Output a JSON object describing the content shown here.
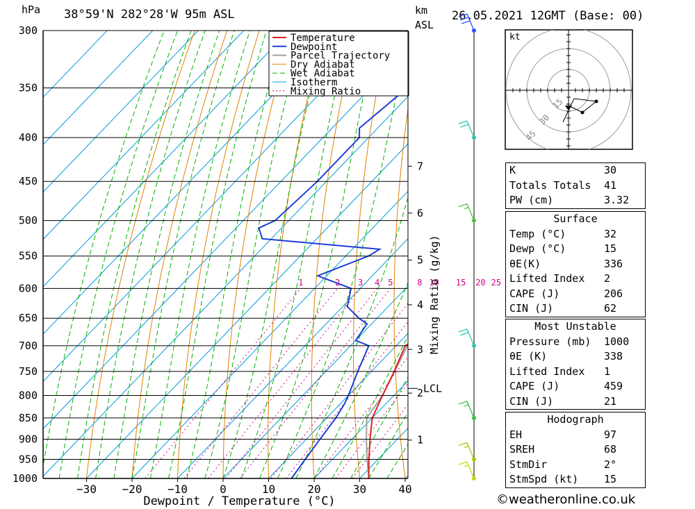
{
  "header": {
    "hpa_unit": "hPa",
    "location": "38°59'N  282°28'W  95m  ASL",
    "km_unit": "km",
    "asl_unit": "ASL",
    "datetime": "26.05.2021  12GMT  (Base: 00)"
  },
  "chart_data": {
    "type": "skew-t",
    "xlabel": "Dewpoint / Temperature (°C)",
    "x_ticks": [
      -30,
      -20,
      -10,
      0,
      10,
      20,
      30,
      40
    ],
    "ylabel_left": "hPa",
    "pressure_levels": [
      300,
      350,
      400,
      450,
      500,
      550,
      600,
      650,
      700,
      750,
      800,
      850,
      900,
      950,
      1000
    ],
    "height_axis": {
      "label": "km ASL",
      "ticks": [
        {
          "km": "1",
          "p": 902
        },
        {
          "km": "2",
          "p": 795
        },
        {
          "km": "3",
          "p": 707
        },
        {
          "km": "4",
          "p": 627
        },
        {
          "km": "5",
          "p": 556
        },
        {
          "km": "6",
          "p": 490
        },
        {
          "km": "7",
          "p": 432
        }
      ],
      "lcl_label": "LCL",
      "lcl_p": 785
    },
    "mixing_ratio_label": "Mixing Ratio (g/kg)",
    "mixing_ratio_values": [
      "1",
      "2",
      "3",
      "4",
      "5",
      "8",
      "10",
      "15",
      "20",
      "25"
    ],
    "legend": [
      "Temperature",
      "Dewpoint",
      "Parcel Trajectory",
      "Dry Adiabat",
      "Wet Adiabat",
      "Isotherm",
      "Mixing Ratio"
    ],
    "colors": {
      "temperature": "#e02020",
      "dewpoint": "#1e3fd8",
      "parcel": "#a0a0a0",
      "dry_adiabat": "#e08000",
      "wet_adiabat": "#00b000",
      "isotherm": "#009ad8",
      "mixing_ratio": "#d0008a"
    },
    "series": [
      {
        "name": "Temperature",
        "points": [
          [
            1000,
            32
          ],
          [
            950,
            28
          ],
          [
            900,
            24
          ],
          [
            850,
            20
          ],
          [
            800,
            17.5
          ],
          [
            750,
            15
          ],
          [
            700,
            12
          ],
          [
            685,
            13.5
          ],
          [
            650,
            10
          ],
          [
            600,
            5
          ],
          [
            575,
            2
          ],
          [
            550,
            1
          ],
          [
            525,
            -1
          ],
          [
            500,
            -5
          ],
          [
            450,
            -12.5
          ],
          [
            400,
            -21
          ],
          [
            350,
            -30
          ],
          [
            300,
            -41
          ]
        ]
      },
      {
        "name": "Dewpoint",
        "points": [
          [
            1000,
            15
          ],
          [
            950,
            14
          ],
          [
            900,
            13
          ],
          [
            850,
            12
          ],
          [
            820,
            11
          ],
          [
            800,
            10
          ],
          [
            750,
            7
          ],
          [
            700,
            4
          ],
          [
            690,
            0
          ],
          [
            660,
            -1
          ],
          [
            650,
            -4
          ],
          [
            630,
            -9
          ],
          [
            600,
            -12
          ],
          [
            580,
            -22
          ],
          [
            550,
            -15
          ],
          [
            540,
            -14
          ],
          [
            525,
            -42
          ],
          [
            510,
            -45
          ],
          [
            500,
            -43
          ],
          [
            450,
            -42
          ],
          [
            400,
            -42
          ],
          [
            390,
            -44
          ],
          [
            350,
            -42
          ],
          [
            300,
            -42
          ]
        ]
      },
      {
        "name": "Parcel Trajectory",
        "points": [
          [
            1000,
            32
          ],
          [
            950,
            27.6
          ],
          [
            900,
            23.2
          ],
          [
            850,
            18.8
          ],
          [
            800,
            17.5
          ],
          [
            700,
            12.5
          ],
          [
            600,
            6.5
          ],
          [
            500,
            -1
          ],
          [
            400,
            -14
          ],
          [
            300,
            -33
          ]
        ]
      }
    ],
    "wind_barbs": [
      {
        "p": 1000,
        "speed_kt": 15
      },
      {
        "p": 950,
        "speed_kt": 15
      },
      {
        "p": 850,
        "speed_kt": 15
      },
      {
        "p": 700,
        "speed_kt": 20
      },
      {
        "p": 500,
        "speed_kt": 15
      },
      {
        "p": 400,
        "speed_kt": 20
      },
      {
        "p": 300,
        "speed_kt": 30
      }
    ],
    "hodograph": {
      "unit": "kt",
      "ring_labels": [
        "15",
        "30",
        "45"
      ],
      "points": [
        [
          0,
          0
        ],
        [
          10,
          -5
        ],
        [
          20,
          3
        ],
        [
          4,
          5
        ],
        [
          -4,
          -12
        ]
      ]
    }
  },
  "indices": {
    "general": [
      {
        "label": "K",
        "value": "30"
      },
      {
        "label": "Totals Totals",
        "value": "41"
      },
      {
        "label": "PW (cm)",
        "value": "3.32"
      }
    ],
    "surface": {
      "title": "Surface",
      "rows": [
        {
          "label": "Temp (°C)",
          "value": "32"
        },
        {
          "label": "Dewp (°C)",
          "value": "15"
        },
        {
          "label": "θE(K)",
          "value": "336"
        },
        {
          "label": "Lifted Index",
          "value": "2"
        },
        {
          "label": "CAPE (J)",
          "value": "206"
        },
        {
          "label": "CIN (J)",
          "value": "62"
        }
      ]
    },
    "most_unstable": {
      "title": "Most Unstable",
      "rows": [
        {
          "label": "Pressure (mb)",
          "value": "1000"
        },
        {
          "label": "θE (K)",
          "value": "338"
        },
        {
          "label": "Lifted Index",
          "value": "1"
        },
        {
          "label": "CAPE (J)",
          "value": "459"
        },
        {
          "label": "CIN (J)",
          "value": "21"
        }
      ]
    },
    "hodograph": {
      "title": "Hodograph",
      "rows": [
        {
          "label": "EH",
          "value": "97"
        },
        {
          "label": "SREH",
          "value": "68"
        },
        {
          "label": "StmDir",
          "value": "2°"
        },
        {
          "label": "StmSpd (kt)",
          "value": "15"
        }
      ]
    }
  },
  "credit": "©weatheronline.co.uk"
}
